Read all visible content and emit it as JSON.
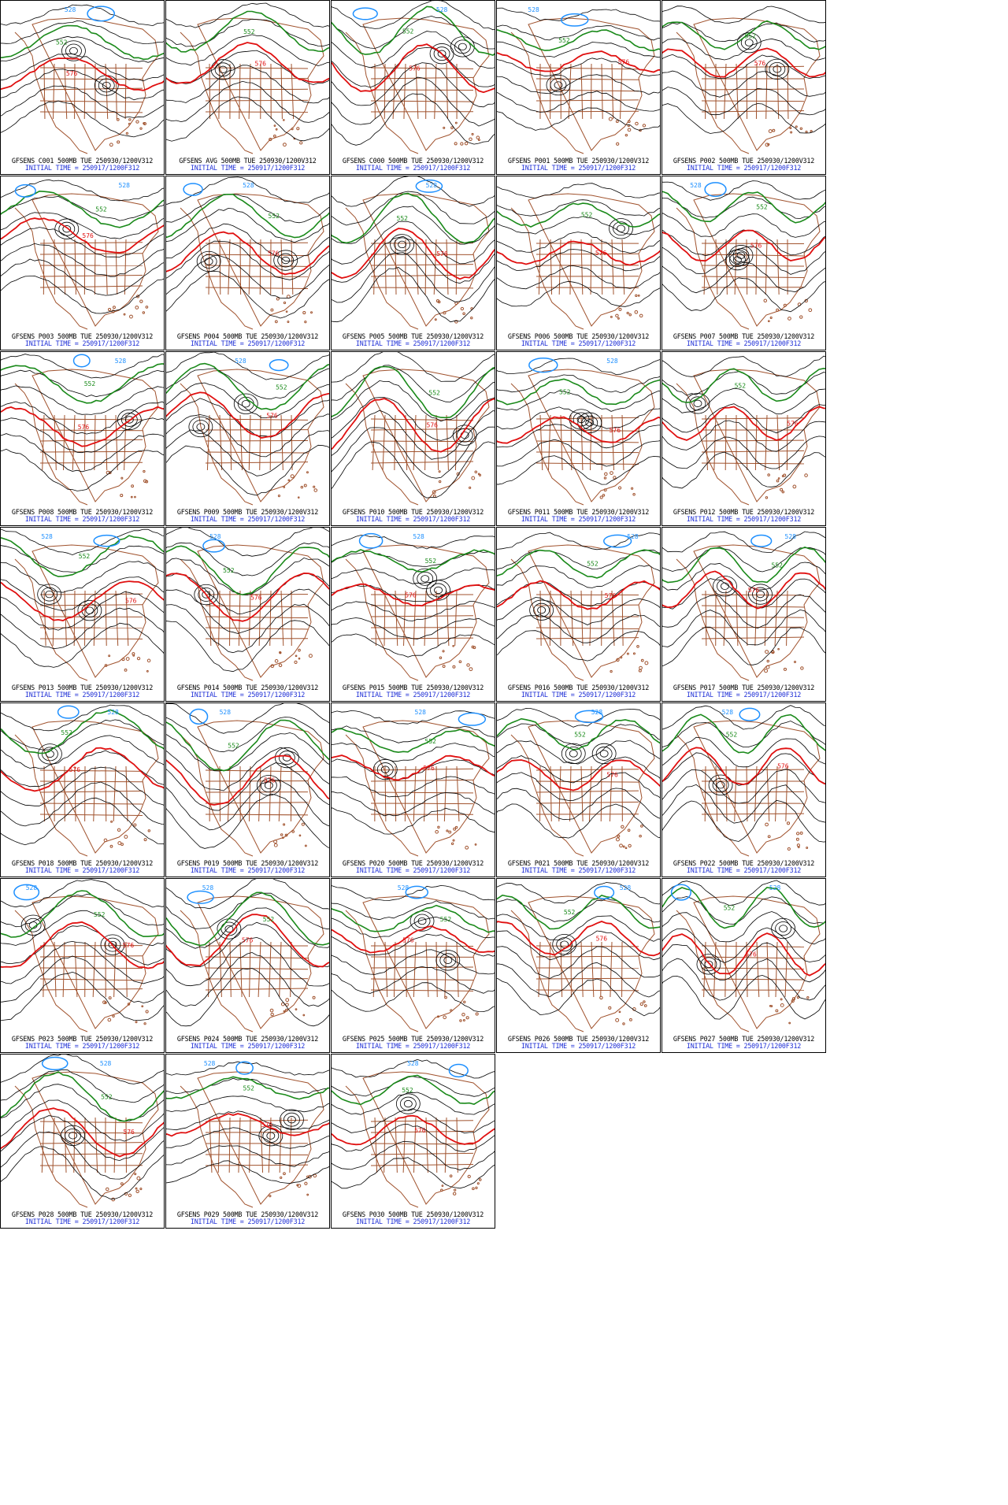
{
  "colors": {
    "geo": "#a0522d",
    "height": "#000000",
    "c552": "#1a8a1a",
    "c576": "#e01010",
    "c528": "#1e90ff",
    "initial": "#1f2fd6"
  },
  "panels": [
    {
      "member": "GFSENS C001 500MB TUE 250930/1200V312",
      "initial": "INITIAL TIME = 250917/1200F312",
      "labels": [
        "528",
        "552",
        "576"
      ]
    },
    {
      "member": "GFSENS AVG 500MB TUE 250930/1200V312",
      "initial": "INITIAL TIME = 250917/1200F312",
      "labels": [
        "552",
        "576"
      ]
    },
    {
      "member": "GFSENS C000 500MB TUE 250930/1200V312",
      "initial": "INITIAL TIME = 250917/1200F312",
      "labels": [
        "528",
        "552",
        "576"
      ]
    },
    {
      "member": "GFSENS P001 500MB TUE 250930/1200V312",
      "initial": "INITIAL TIME = 250917/1200F312",
      "labels": [
        "528",
        "552",
        "576"
      ]
    },
    {
      "member": "GFSENS P002 500MB TUE 250930/1200V312",
      "initial": "INITIAL TIME = 250917/1200F312",
      "labels": [
        "552",
        "576"
      ]
    },
    {
      "member": "GFSENS P003 500MB TUE 250930/1200V312",
      "initial": "INITIAL TIME = 250917/1200F312",
      "labels": [
        "528",
        "552",
        "576"
      ]
    },
    {
      "member": "GFSENS P004 500MB TUE 250930/1200V312",
      "initial": "INITIAL TIME = 250917/1200F312",
      "labels": [
        "528",
        "552",
        "576"
      ]
    },
    {
      "member": "GFSENS P005 500MB TUE 250930/1200V312",
      "initial": "INITIAL TIME = 250917/1200F312",
      "labels": [
        "528",
        "552",
        "576"
      ]
    },
    {
      "member": "GFSENS P006 500MB TUE 250930/1200V312",
      "initial": "INITIAL TIME = 250917/1200F312",
      "labels": [
        "552",
        "576"
      ]
    },
    {
      "member": "GFSENS P007 500MB TUE 250930/1200V312",
      "initial": "INITIAL TIME = 250917/1200F312",
      "labels": [
        "528",
        "552",
        "576"
      ]
    },
    {
      "member": "GFSENS P008 500MB TUE 250930/1200V312",
      "initial": "INITIAL TIME = 250917/1200F312",
      "labels": [
        "528",
        "552",
        "576"
      ]
    },
    {
      "member": "GFSENS P009 500MB TUE 250930/1200V312",
      "initial": "INITIAL TIME = 250917/1200F312",
      "labels": [
        "528",
        "552",
        "576"
      ]
    },
    {
      "member": "GFSENS P010 500MB TUE 250930/1200V312",
      "initial": "INITIAL TIME = 250917/1200F312",
      "labels": [
        "552",
        "576"
      ]
    },
    {
      "member": "GFSENS P011 500MB TUE 250930/1200V312",
      "initial": "INITIAL TIME = 250917/1200F312",
      "labels": [
        "528",
        "552",
        "576"
      ]
    },
    {
      "member": "GFSENS P012 500MB TUE 250930/1200V312",
      "initial": "INITIAL TIME = 250917/1200F312",
      "labels": [
        "552",
        "576"
      ]
    },
    {
      "member": "GFSENS P013 500MB TUE 250930/1200V312",
      "initial": "INITIAL TIME = 250917/1200F312",
      "labels": [
        "528",
        "552",
        "576"
      ]
    },
    {
      "member": "GFSENS P014 500MB TUE 250930/1200V312",
      "initial": "INITIAL TIME = 250917/1200F312",
      "labels": [
        "528",
        "552",
        "576"
      ]
    },
    {
      "member": "GFSENS P015 500MB TUE 250930/1200V312",
      "initial": "INITIAL TIME = 250917/1200F312",
      "labels": [
        "528",
        "552",
        "576"
      ]
    },
    {
      "member": "GFSENS P016 500MB TUE 250930/1200V312",
      "initial": "INITIAL TIME = 250917/1200F312",
      "labels": [
        "528",
        "552",
        "576"
      ]
    },
    {
      "member": "GFSENS P017 500MB TUE 250930/1200V312",
      "initial": "INITIAL TIME = 250917/1200F312",
      "labels": [
        "528",
        "552",
        "576"
      ]
    },
    {
      "member": "GFSENS P018 500MB TUE 250930/1200V312",
      "initial": "INITIAL TIME = 250917/1200F312",
      "labels": [
        "528",
        "552",
        "576"
      ]
    },
    {
      "member": "GFSENS P019 500MB TUE 250930/1200V312",
      "initial": "INITIAL TIME = 250917/1200F312",
      "labels": [
        "528",
        "552",
        "576"
      ]
    },
    {
      "member": "GFSENS P020 500MB TUE 250930/1200V312",
      "initial": "INITIAL TIME = 250917/1200F312",
      "labels": [
        "528",
        "552",
        "576"
      ]
    },
    {
      "member": "GFSENS P021 500MB TUE 250930/1200V312",
      "initial": "INITIAL TIME = 250917/1200F312",
      "labels": [
        "528",
        "552",
        "576"
      ]
    },
    {
      "member": "GFSENS P022 500MB TUE 250930/1200V312",
      "initial": "INITIAL TIME = 250917/1200F312",
      "labels": [
        "528",
        "552",
        "576"
      ]
    },
    {
      "member": "GFSENS P023 500MB TUE 250930/1200V312",
      "initial": "INITIAL TIME = 250917/1200F312",
      "labels": [
        "528",
        "552",
        "576"
      ]
    },
    {
      "member": "GFSENS P024 500MB TUE 250930/1200V312",
      "initial": "INITIAL TIME = 250917/1200F312",
      "labels": [
        "528",
        "552",
        "576"
      ]
    },
    {
      "member": "GFSENS P025 500MB TUE 250930/1200V312",
      "initial": "INITIAL TIME = 250917/1200F312",
      "labels": [
        "528",
        "552",
        "576"
      ]
    },
    {
      "member": "GFSENS P026 500MB TUE 250930/1200V312",
      "initial": "INITIAL TIME = 250917/1200F312",
      "labels": [
        "528",
        "552",
        "576"
      ]
    },
    {
      "member": "GFSENS P027 500MB TUE 250930/1200V312",
      "initial": "INITIAL TIME = 250917/1200F312",
      "labels": [
        "528",
        "552",
        "576"
      ]
    },
    {
      "member": "GFSENS P028 500MB TUE 250930/1200V312",
      "initial": "INITIAL TIME = 250917/1200F312",
      "labels": [
        "528",
        "552",
        "576"
      ]
    },
    {
      "member": "GFSENS P029 500MB TUE 250930/1200V312",
      "initial": "INITIAL TIME = 250917/1200F312",
      "labels": [
        "528",
        "552",
        "576"
      ]
    },
    {
      "member": "GFSENS P030 500MB TUE 250930/1200V312",
      "initial": "INITIAL TIME = 250917/1200F312",
      "labels": [
        "528",
        "552",
        "576"
      ]
    }
  ]
}
